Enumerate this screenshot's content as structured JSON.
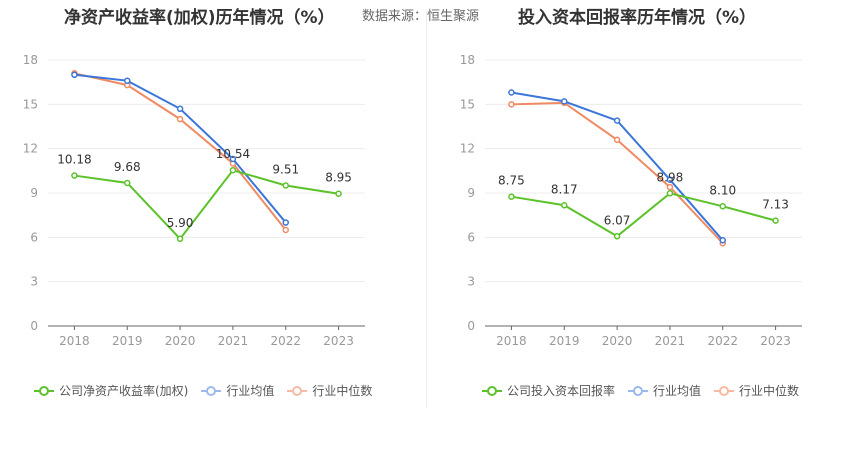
{
  "left_title": "净资产收益率(加权)历年情况（%）",
  "source": "数据来源：恒生聚源",
  "right_title": "投入资本回报率历年情况（%）",
  "colors": {
    "company": "#5cc22a",
    "avg": "#3b76d8",
    "median": "#f08a62"
  },
  "chart_data": [
    {
      "type": "line",
      "title": "净资产收益率(加权)历年情况（%）",
      "categories": [
        "2018",
        "2019",
        "2020",
        "2021",
        "2022",
        "2023"
      ],
      "ylim": [
        0,
        18
      ],
      "yticks": [
        "0",
        "3",
        "6",
        "9",
        "12",
        "15",
        "18"
      ],
      "grid": true,
      "legend_position": "bottom",
      "series": [
        {
          "name": "公司净资产收益率(加权)",
          "values": [
            10.18,
            9.68,
            5.9,
            10.54,
            9.51,
            8.95
          ],
          "labels": [
            "10.18",
            "9.68",
            "5.90",
            "10.54",
            "9.51",
            "8.95"
          ]
        },
        {
          "name": "行业均值",
          "values": [
            17.0,
            16.6,
            14.7,
            11.3,
            7.0,
            null
          ]
        },
        {
          "name": "行业中位数",
          "values": [
            17.1,
            16.3,
            14.0,
            11.0,
            6.5,
            null
          ]
        }
      ]
    },
    {
      "type": "line",
      "title": "投入资本回报率历年情况（%）",
      "categories": [
        "2018",
        "2019",
        "2020",
        "2021",
        "2022",
        "2023"
      ],
      "ylim": [
        0,
        18
      ],
      "yticks": [
        "0",
        "3",
        "6",
        "9",
        "12",
        "15",
        "18"
      ],
      "grid": true,
      "legend_position": "bottom",
      "series": [
        {
          "name": "公司投入资本回报率",
          "values": [
            8.75,
            8.17,
            6.07,
            8.98,
            8.1,
            7.13
          ],
          "labels": [
            "8.75",
            "8.17",
            "6.07",
            "8.98",
            "8.10",
            "7.13"
          ]
        },
        {
          "name": "行业均值",
          "values": [
            15.8,
            15.2,
            13.9,
            9.9,
            5.8,
            null
          ]
        },
        {
          "name": "行业中位数",
          "values": [
            15.0,
            15.1,
            12.6,
            9.4,
            5.6,
            null
          ]
        }
      ]
    }
  ]
}
